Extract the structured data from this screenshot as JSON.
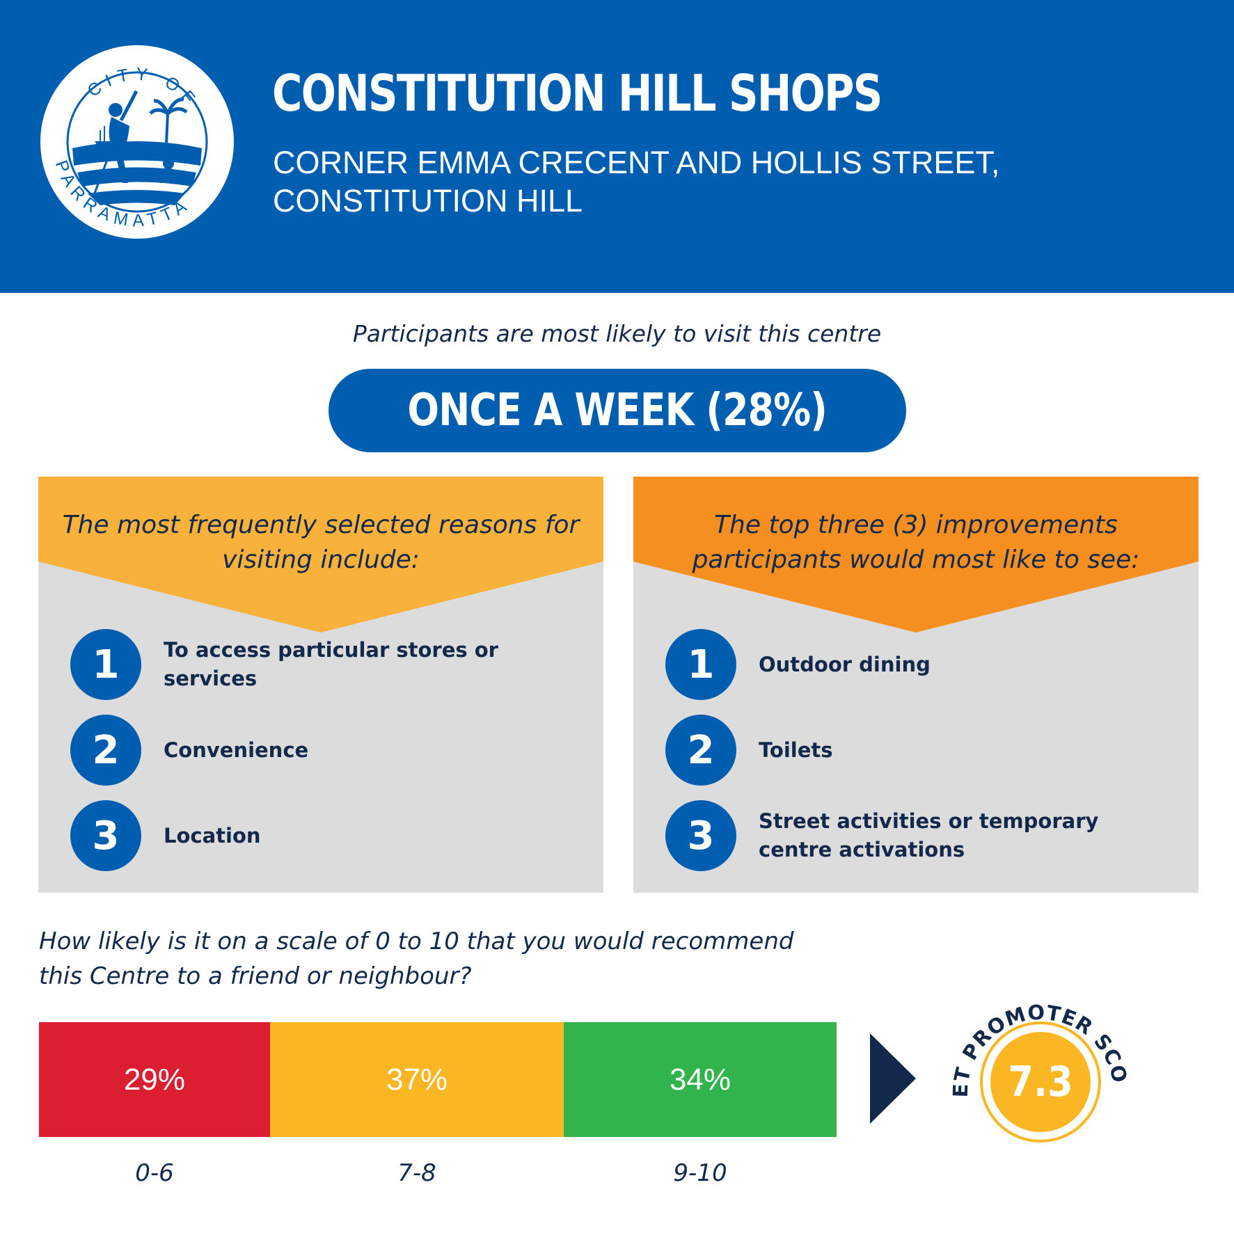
{
  "header": {
    "logo_text": "CITY OF PARRAMATTA",
    "title": "CONSTITUTION HILL SHOPS",
    "subtitle": "CORNER EMMA CRECENT AND HOLLIS STREET, CONSTITUTION HILL"
  },
  "visit": {
    "intro": "Participants are most likely to visit this centre",
    "frequency": "ONCE A WEEK (28%)"
  },
  "reasons": {
    "heading": "The most frequently selected reasons for visiting include:",
    "items": [
      {
        "number": "1",
        "label": "To access particular stores or services"
      },
      {
        "number": "2",
        "label": "Convenience"
      },
      {
        "number": "3",
        "label": "Location"
      }
    ]
  },
  "improvements": {
    "heading": "The top three (3) improvements participants would most like to see:",
    "items": [
      {
        "number": "1",
        "label": "Outdoor dining"
      },
      {
        "number": "2",
        "label": "Toilets"
      },
      {
        "number": "3",
        "label": "Street activities or temporary centre activations"
      }
    ]
  },
  "recommend": {
    "question": "How likely is it on a scale of 0 to 10 that you would recommend this Centre to a friend or neighbour?",
    "segments": [
      {
        "percent": "29%",
        "range": "0-6",
        "color": "#dc1f30"
      },
      {
        "percent": "37%",
        "range": "7-8",
        "color": "#fbb623"
      },
      {
        "percent": "34%",
        "range": "9-10",
        "color": "#31b44b"
      }
    ]
  },
  "nps": {
    "label": "NET PROMOTER SCORE",
    "score": "7.3"
  },
  "colors": {
    "brand_blue": "#005eb1",
    "navy": "#13294b",
    "reasons_header": "#f8b13b",
    "improvements_header": "#f58f1f",
    "panel_grey": "#dcdcdc",
    "nps_gold": "#fbb623"
  }
}
